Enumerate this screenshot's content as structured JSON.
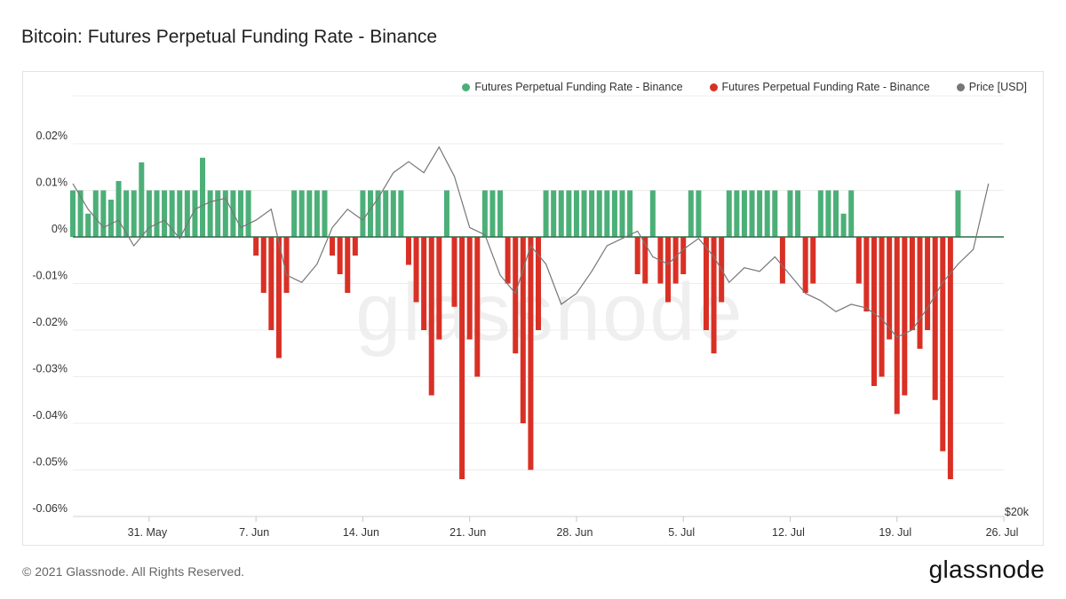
{
  "page": {
    "title": "Bitcoin: Futures Perpetual Funding Rate - Binance",
    "footer": "© 2021 Glassnode. All Rights Reserved.",
    "brand": "glassnode",
    "watermark": "glassnode"
  },
  "legend": [
    {
      "label": "Futures Perpetual Funding Rate - Binance",
      "color": "#4caf78"
    },
    {
      "label": "Futures Perpetual Funding Rate - Binance",
      "color": "#d93025"
    },
    {
      "label": "Price [USD]",
      "color": "#777777"
    }
  ],
  "chart_data": {
    "type": "bar",
    "title": "Bitcoin: Futures Perpetual Funding Rate - Binance",
    "y_unit": "%",
    "ylim": [
      -0.06,
      0.03
    ],
    "yticks": [
      -0.06,
      -0.05,
      -0.04,
      -0.03,
      -0.02,
      -0.01,
      0,
      0.01,
      0.02
    ],
    "ytick_labels": [
      "-0.06%",
      "-0.05%",
      "-0.04%",
      "-0.03%",
      "-0.02%",
      "-0.01%",
      "0%",
      "0.01%",
      "0.02%"
    ],
    "xlim_days": [
      0,
      61
    ],
    "xticks": [
      {
        "day": 5,
        "label": "31. May"
      },
      {
        "day": 12,
        "label": "7. Jun"
      },
      {
        "day": 19,
        "label": "14. Jun"
      },
      {
        "day": 26,
        "label": "21. Jun"
      },
      {
        "day": 33,
        "label": "28. Jun"
      },
      {
        "day": 40,
        "label": "5. Jul"
      },
      {
        "day": 47,
        "label": "12. Jul"
      },
      {
        "day": 54,
        "label": "19. Jul"
      },
      {
        "day": 61,
        "label": "26. Jul"
      }
    ],
    "price_axis_label": "$20k",
    "grid": true,
    "legend_position": "top-right",
    "series": [
      {
        "name": "Futures Perpetual Funding Rate - Binance",
        "positive_color": "#4caf78",
        "negative_color": "#d93025",
        "day_step": 0.5,
        "values": [
          0.01,
          0.01,
          0.005,
          0.01,
          0.01,
          0.008,
          0.012,
          0.01,
          0.01,
          0.016,
          0.01,
          0.01,
          0.01,
          0.01,
          0.01,
          0.01,
          0.01,
          0.017,
          0.01,
          0.01,
          0.01,
          0.01,
          0.01,
          0.01,
          -0.004,
          -0.012,
          -0.02,
          -0.026,
          -0.012,
          0.01,
          0.01,
          0.01,
          0.01,
          0.01,
          -0.004,
          -0.008,
          -0.012,
          -0.004,
          0.01,
          0.01,
          0.01,
          0.01,
          0.01,
          0.01,
          -0.006,
          -0.014,
          -0.02,
          -0.034,
          -0.022,
          0.01,
          -0.015,
          -0.052,
          -0.022,
          -0.03,
          0.01,
          0.01,
          0.01,
          -0.01,
          -0.025,
          -0.04,
          -0.05,
          -0.02,
          0.01,
          0.01,
          0.01,
          0.01,
          0.01,
          0.01,
          0.01,
          0.01,
          0.01,
          0.01,
          0.01,
          0.01,
          -0.008,
          -0.01,
          0.01,
          -0.01,
          -0.014,
          -0.01,
          -0.008,
          0.01,
          0.01,
          -0.02,
          -0.025,
          -0.014,
          0.01,
          0.01,
          0.01,
          0.01,
          0.01,
          0.01,
          0.01,
          -0.01,
          0.01,
          0.01,
          -0.012,
          -0.01,
          0.01,
          0.01,
          0.01,
          0.005,
          0.01,
          -0.01,
          -0.016,
          -0.032,
          -0.03,
          -0.022,
          -0.038,
          -0.034,
          -0.02,
          -0.024,
          -0.02,
          -0.035,
          -0.046,
          -0.052,
          0.01
        ]
      },
      {
        "name": "Price [USD]",
        "color": "#777777",
        "price_axis_min": 20000,
        "price_axis_max": 43000,
        "day_step": 1,
        "values": [
          38200,
          36800,
          35800,
          36200,
          34800,
          35800,
          36200,
          35200,
          36800,
          37200,
          37400,
          35800,
          36200,
          36800,
          33200,
          32800,
          33800,
          35800,
          36800,
          36200,
          37400,
          38800,
          39400,
          38800,
          40200,
          38600,
          35800,
          35400,
          33200,
          32200,
          34800,
          33800,
          31600,
          32200,
          33400,
          34800,
          35200,
          35600,
          34200,
          33800,
          34600,
          35200,
          34200,
          32800,
          33600,
          33400,
          34200,
          33200,
          32200,
          31800,
          31200,
          31600,
          31400,
          30800,
          29800,
          30200,
          31400,
          32800,
          33800,
          34600,
          38200
        ]
      }
    ]
  }
}
